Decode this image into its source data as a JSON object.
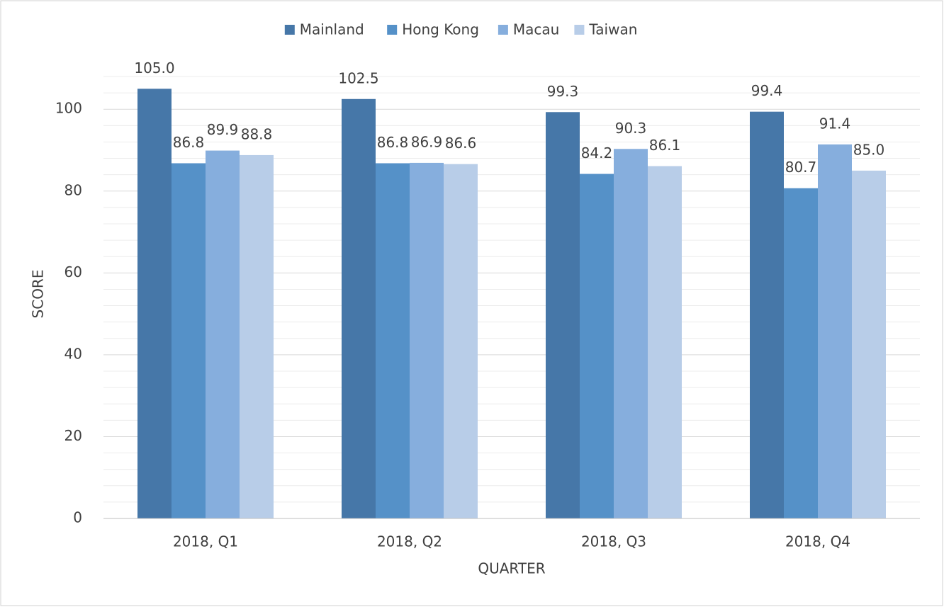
{
  "chart_data": {
    "type": "bar",
    "x_label": "QUARTER",
    "y_label": "SCORE",
    "categories": [
      "2018, Q1",
      "2018, Q2",
      "2018, Q3",
      "2018, Q4"
    ],
    "series": [
      {
        "name": "Mainland",
        "color": "#4677a8",
        "values": [
          105,
          102.5,
          99.3,
          99.4
        ],
        "value_labels": [
          "105.0",
          "102.5",
          "99.3",
          "99.4"
        ]
      },
      {
        "name": "Hong Kong",
        "color": "#5591c8",
        "values": [
          86.8,
          86.8,
          84.2,
          80.7
        ],
        "value_labels": [
          "86.8",
          "86.8",
          "84.2",
          "80.7"
        ]
      },
      {
        "name": "Macau",
        "color": "#86aedd",
        "values": [
          89.9,
          86.9,
          90.3,
          91.4
        ],
        "value_labels": [
          "89.9",
          "86.9",
          "90.3",
          "91.4"
        ]
      },
      {
        "name": "Taiwan",
        "color": "#b8cde8",
        "values": [
          88.8,
          86.6,
          86.1,
          85
        ],
        "value_labels": [
          "88.8",
          "86.6",
          "86.1",
          "85.0"
        ]
      }
    ],
    "ylim": [
      0,
      108
    ],
    "yticks": [
      0,
      20,
      40,
      60,
      80,
      100
    ],
    "minor_yticks": [
      4,
      8,
      12,
      16,
      24,
      28,
      32,
      36,
      44,
      48,
      52,
      56,
      64,
      68,
      72,
      76,
      84,
      88,
      92,
      96,
      104,
      108
    ],
    "grid": true,
    "legend": "top"
  }
}
